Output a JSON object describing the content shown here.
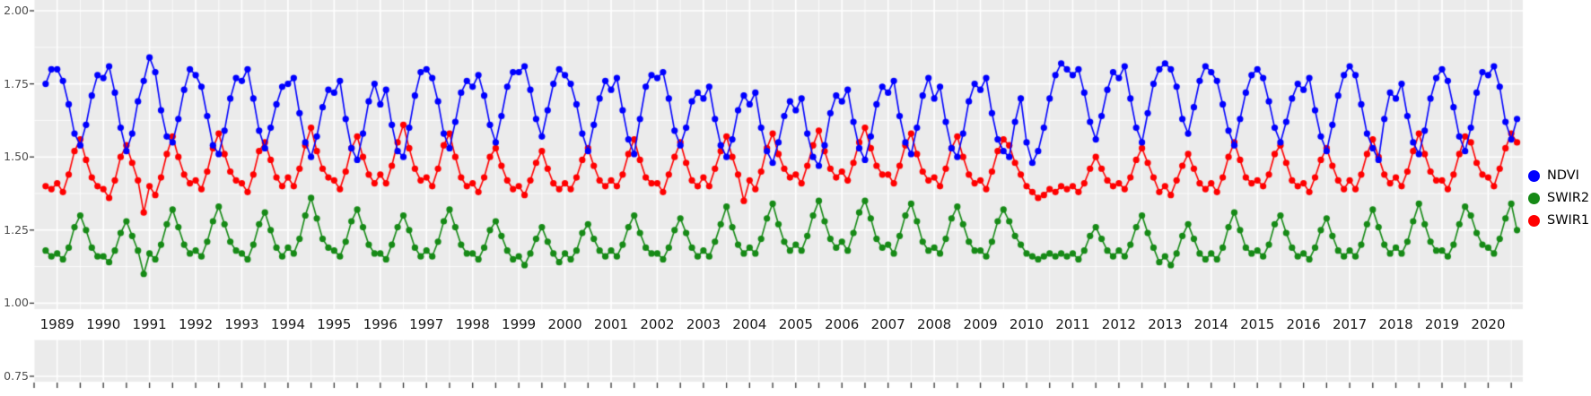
{
  "chart": {
    "background_color": "#FFFFFF",
    "panel_color": "#EBEBEB",
    "grid_color": "#FFFFFF",
    "y_axis_text_color": "#4D4D4D",
    "x_axis_text_color": "#1A1A1A",
    "tick_mark_color": "#333333"
  },
  "legend": {
    "position": "right",
    "items": [
      "NDVI",
      "SWIR2",
      "SWIR1"
    ]
  },
  "chart_data": {
    "type": "line",
    "title": "",
    "xlabel": "",
    "ylabel": "",
    "points": true,
    "grid": true,
    "legend_position": "right",
    "xlim": [
      1988.5,
      2020.75
    ],
    "ylim": [
      0.75,
      2.0
    ],
    "x_start": 1988.75,
    "x_step": 0.125,
    "n_points": 256,
    "xticks": [
      1989,
      1990,
      1991,
      1992,
      1993,
      1994,
      1995,
      1996,
      1997,
      1998,
      1999,
      2000,
      2001,
      2002,
      2003,
      2004,
      2005,
      2006,
      2007,
      2008,
      2009,
      2010,
      2011,
      2012,
      2013,
      2014,
      2015,
      2016,
      2017,
      2018,
      2019,
      2020
    ],
    "yticks": [
      0.75,
      1.0,
      1.25,
      1.5,
      1.75,
      2.0
    ],
    "ytick_labels": [
      "0.75",
      "1.00",
      "1.25",
      "1.50",
      "1.75",
      "2.00"
    ],
    "series": [
      {
        "name": "NDVI",
        "color": "#0000FF",
        "values": [
          1.75,
          1.8,
          1.8,
          1.76,
          1.68,
          1.58,
          1.54,
          1.61,
          1.71,
          1.78,
          1.77,
          1.81,
          1.72,
          1.6,
          1.52,
          1.58,
          1.69,
          1.76,
          1.84,
          1.79,
          1.66,
          1.57,
          1.55,
          1.63,
          1.73,
          1.8,
          1.78,
          1.74,
          1.64,
          1.54,
          1.51,
          1.59,
          1.7,
          1.77,
          1.76,
          1.8,
          1.7,
          1.59,
          1.53,
          1.6,
          1.68,
          1.74,
          1.75,
          1.77,
          1.65,
          1.55,
          1.5,
          1.57,
          1.67,
          1.73,
          1.72,
          1.76,
          1.63,
          1.53,
          1.49,
          1.58,
          1.69,
          1.75,
          1.68,
          1.73,
          1.61,
          1.52,
          1.5,
          1.6,
          1.71,
          1.79,
          1.8,
          1.77,
          1.69,
          1.58,
          1.53,
          1.62,
          1.72,
          1.76,
          1.74,
          1.78,
          1.71,
          1.61,
          1.55,
          1.64,
          1.74,
          1.79,
          1.79,
          1.81,
          1.73,
          1.63,
          1.57,
          1.66,
          1.75,
          1.8,
          1.78,
          1.75,
          1.68,
          1.58,
          1.52,
          1.61,
          1.7,
          1.76,
          1.73,
          1.77,
          1.66,
          1.56,
          1.51,
          1.63,
          1.74,
          1.78,
          1.77,
          1.79,
          1.7,
          1.59,
          1.54,
          1.6,
          1.69,
          1.72,
          1.7,
          1.74,
          1.63,
          1.54,
          1.5,
          1.56,
          1.66,
          1.71,
          1.68,
          1.72,
          1.6,
          1.52,
          1.48,
          1.55,
          1.64,
          1.69,
          1.66,
          1.7,
          1.58,
          1.5,
          1.47,
          1.54,
          1.65,
          1.71,
          1.69,
          1.73,
          1.62,
          1.53,
          1.49,
          1.57,
          1.68,
          1.74,
          1.72,
          1.76,
          1.64,
          1.55,
          1.51,
          1.6,
          1.71,
          1.77,
          1.7,
          1.74,
          1.62,
          1.53,
          1.5,
          1.58,
          1.69,
          1.75,
          1.73,
          1.77,
          1.65,
          1.56,
          1.52,
          1.5,
          1.62,
          1.7,
          1.55,
          1.48,
          1.52,
          1.6,
          1.7,
          1.78,
          1.82,
          1.8,
          1.78,
          1.8,
          1.72,
          1.62,
          1.56,
          1.64,
          1.73,
          1.79,
          1.77,
          1.81,
          1.7,
          1.6,
          1.55,
          1.65,
          1.75,
          1.8,
          1.82,
          1.8,
          1.74,
          1.63,
          1.58,
          1.67,
          1.76,
          1.81,
          1.79,
          1.76,
          1.68,
          1.59,
          1.54,
          1.63,
          1.72,
          1.78,
          1.8,
          1.77,
          1.69,
          1.6,
          1.55,
          1.62,
          1.7,
          1.75,
          1.73,
          1.77,
          1.66,
          1.57,
          1.52,
          1.61,
          1.71,
          1.78,
          1.81,
          1.78,
          1.68,
          1.58,
          1.53,
          1.49,
          1.63,
          1.72,
          1.7,
          1.75,
          1.64,
          1.55,
          1.51,
          1.59,
          1.7,
          1.77,
          1.8,
          1.76,
          1.67,
          1.57,
          1.52,
          1.6,
          1.72,
          1.79,
          1.78,
          1.81,
          1.74,
          1.62,
          1.56,
          1.63
        ]
      },
      {
        "name": "SWIR2",
        "color": "#168A16",
        "values": [
          1.18,
          1.16,
          1.17,
          1.15,
          1.19,
          1.26,
          1.3,
          1.25,
          1.19,
          1.16,
          1.16,
          1.14,
          1.18,
          1.24,
          1.28,
          1.23,
          1.18,
          1.1,
          1.17,
          1.15,
          1.2,
          1.27,
          1.32,
          1.26,
          1.2,
          1.17,
          1.18,
          1.16,
          1.21,
          1.28,
          1.33,
          1.27,
          1.21,
          1.18,
          1.17,
          1.15,
          1.2,
          1.27,
          1.31,
          1.25,
          1.19,
          1.16,
          1.19,
          1.17,
          1.22,
          1.3,
          1.36,
          1.29,
          1.22,
          1.19,
          1.18,
          1.16,
          1.21,
          1.28,
          1.32,
          1.26,
          1.2,
          1.17,
          1.17,
          1.15,
          1.2,
          1.26,
          1.3,
          1.25,
          1.19,
          1.16,
          1.18,
          1.16,
          1.21,
          1.28,
          1.32,
          1.26,
          1.2,
          1.17,
          1.17,
          1.15,
          1.19,
          1.25,
          1.28,
          1.23,
          1.18,
          1.15,
          1.16,
          1.13,
          1.17,
          1.22,
          1.26,
          1.21,
          1.17,
          1.14,
          1.17,
          1.15,
          1.18,
          1.24,
          1.27,
          1.22,
          1.18,
          1.16,
          1.18,
          1.16,
          1.2,
          1.26,
          1.3,
          1.24,
          1.19,
          1.17,
          1.17,
          1.15,
          1.19,
          1.25,
          1.29,
          1.24,
          1.19,
          1.16,
          1.18,
          1.16,
          1.21,
          1.27,
          1.33,
          1.26,
          1.2,
          1.17,
          1.19,
          1.17,
          1.22,
          1.29,
          1.34,
          1.27,
          1.21,
          1.18,
          1.2,
          1.18,
          1.23,
          1.3,
          1.35,
          1.28,
          1.22,
          1.19,
          1.21,
          1.18,
          1.24,
          1.31,
          1.35,
          1.29,
          1.22,
          1.19,
          1.2,
          1.17,
          1.23,
          1.3,
          1.34,
          1.28,
          1.21,
          1.18,
          1.19,
          1.17,
          1.22,
          1.29,
          1.33,
          1.27,
          1.21,
          1.18,
          1.18,
          1.16,
          1.21,
          1.28,
          1.32,
          1.28,
          1.23,
          1.2,
          1.17,
          1.16,
          1.15,
          1.16,
          1.17,
          1.16,
          1.17,
          1.16,
          1.17,
          1.15,
          1.18,
          1.23,
          1.26,
          1.22,
          1.18,
          1.16,
          1.18,
          1.16,
          1.2,
          1.26,
          1.3,
          1.24,
          1.19,
          1.14,
          1.16,
          1.13,
          1.17,
          1.23,
          1.27,
          1.22,
          1.17,
          1.15,
          1.17,
          1.15,
          1.19,
          1.26,
          1.31,
          1.25,
          1.19,
          1.17,
          1.18,
          1.16,
          1.2,
          1.27,
          1.3,
          1.24,
          1.19,
          1.16,
          1.17,
          1.15,
          1.19,
          1.25,
          1.29,
          1.23,
          1.18,
          1.16,
          1.18,
          1.16,
          1.2,
          1.27,
          1.32,
          1.26,
          1.2,
          1.17,
          1.19,
          1.17,
          1.21,
          1.28,
          1.34,
          1.27,
          1.21,
          1.18,
          1.18,
          1.16,
          1.2,
          1.27,
          1.33,
          1.3,
          1.24,
          1.2,
          1.19,
          1.17,
          1.22,
          1.29,
          1.34,
          1.25
        ]
      },
      {
        "name": "SWIR1",
        "color": "#FF0000",
        "values": [
          1.4,
          1.39,
          1.41,
          1.38,
          1.44,
          1.52,
          1.56,
          1.49,
          1.43,
          1.4,
          1.39,
          1.36,
          1.42,
          1.5,
          1.54,
          1.48,
          1.42,
          1.31,
          1.4,
          1.37,
          1.43,
          1.51,
          1.57,
          1.5,
          1.44,
          1.41,
          1.42,
          1.39,
          1.45,
          1.53,
          1.58,
          1.51,
          1.45,
          1.42,
          1.41,
          1.38,
          1.44,
          1.52,
          1.55,
          1.49,
          1.43,
          1.4,
          1.43,
          1.4,
          1.46,
          1.54,
          1.6,
          1.52,
          1.46,
          1.43,
          1.42,
          1.39,
          1.45,
          1.53,
          1.57,
          1.5,
          1.44,
          1.41,
          1.44,
          1.41,
          1.47,
          1.55,
          1.61,
          1.53,
          1.46,
          1.42,
          1.43,
          1.4,
          1.46,
          1.54,
          1.58,
          1.5,
          1.43,
          1.4,
          1.41,
          1.38,
          1.43,
          1.5,
          1.53,
          1.47,
          1.42,
          1.39,
          1.4,
          1.37,
          1.42,
          1.48,
          1.52,
          1.46,
          1.41,
          1.39,
          1.41,
          1.39,
          1.43,
          1.49,
          1.53,
          1.47,
          1.42,
          1.4,
          1.42,
          1.4,
          1.44,
          1.51,
          1.56,
          1.49,
          1.43,
          1.41,
          1.41,
          1.38,
          1.44,
          1.5,
          1.55,
          1.48,
          1.42,
          1.4,
          1.43,
          1.4,
          1.46,
          1.52,
          1.57,
          1.5,
          1.44,
          1.35,
          1.42,
          1.39,
          1.45,
          1.53,
          1.58,
          1.51,
          1.46,
          1.43,
          1.44,
          1.41,
          1.47,
          1.54,
          1.59,
          1.52,
          1.46,
          1.43,
          1.45,
          1.42,
          1.48,
          1.55,
          1.6,
          1.53,
          1.47,
          1.44,
          1.44,
          1.41,
          1.47,
          1.54,
          1.58,
          1.51,
          1.45,
          1.42,
          1.43,
          1.4,
          1.46,
          1.53,
          1.57,
          1.5,
          1.44,
          1.41,
          1.42,
          1.39,
          1.45,
          1.52,
          1.56,
          1.54,
          1.48,
          1.44,
          1.4,
          1.38,
          1.36,
          1.37,
          1.39,
          1.38,
          1.4,
          1.39,
          1.4,
          1.38,
          1.41,
          1.46,
          1.5,
          1.46,
          1.42,
          1.4,
          1.41,
          1.39,
          1.43,
          1.49,
          1.53,
          1.48,
          1.43,
          1.38,
          1.4,
          1.37,
          1.42,
          1.47,
          1.51,
          1.46,
          1.41,
          1.39,
          1.41,
          1.38,
          1.43,
          1.5,
          1.55,
          1.49,
          1.43,
          1.41,
          1.42,
          1.4,
          1.44,
          1.51,
          1.54,
          1.48,
          1.42,
          1.4,
          1.41,
          1.38,
          1.43,
          1.49,
          1.53,
          1.47,
          1.42,
          1.39,
          1.42,
          1.39,
          1.44,
          1.51,
          1.56,
          1.5,
          1.44,
          1.41,
          1.43,
          1.4,
          1.45,
          1.52,
          1.58,
          1.51,
          1.45,
          1.42,
          1.42,
          1.39,
          1.44,
          1.51,
          1.57,
          1.55,
          1.48,
          1.44,
          1.43,
          1.4,
          1.46,
          1.53,
          1.58,
          1.55
        ]
      }
    ]
  }
}
